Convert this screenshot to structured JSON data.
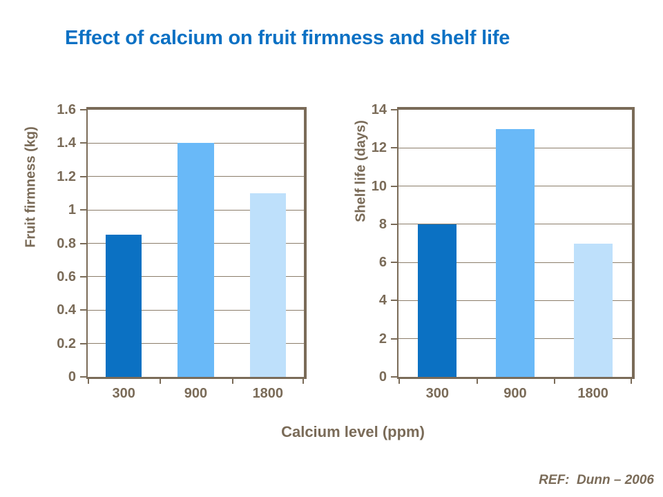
{
  "slide": {
    "title": "Effect of calcium on fruit firmness and shelf life",
    "x_axis_title": "Calcium level (ppm)",
    "reference": "REF:  Dunn – 2006"
  },
  "colors": {
    "title_text": "#0C71C4",
    "axis_brown": "#7A6B58",
    "gridline": "#8B7D6A",
    "bar_series": [
      "#0B71C3",
      "#69B9F8",
      "#BEE0FB"
    ]
  },
  "chart_data": [
    {
      "type": "bar",
      "name": "fruit-firmness",
      "title": "",
      "categories": [
        "300",
        "900",
        "1800"
      ],
      "values": [
        0.85,
        1.4,
        1.1
      ],
      "xlabel": "Calcium level (ppm)",
      "ylabel": "Fruit firmness (kg)",
      "ylim": [
        0,
        1.6
      ],
      "ytick_values": [
        1.6,
        1.4,
        1.2,
        1.0,
        0.8,
        0.6,
        0.4,
        0.2,
        0
      ],
      "ytick_labels": [
        "1.6",
        "1.4",
        "1.2",
        "1",
        "0.8",
        "0.6",
        "0.4",
        "0.2",
        "0"
      ],
      "grid": true,
      "legend": false
    },
    {
      "type": "bar",
      "name": "shelf-life",
      "title": "",
      "categories": [
        "300",
        "900",
        "1800"
      ],
      "values": [
        8,
        13,
        7
      ],
      "xlabel": "Calcium level (ppm)",
      "ylabel": "Shelf life (days)",
      "ylim": [
        0,
        14
      ],
      "ytick_values": [
        14,
        12,
        10,
        8,
        6,
        4,
        2,
        0
      ],
      "ytick_labels": [
        "14",
        "12",
        "10",
        "8",
        "6",
        "4",
        "2",
        "0"
      ],
      "grid": true,
      "legend": false
    }
  ]
}
